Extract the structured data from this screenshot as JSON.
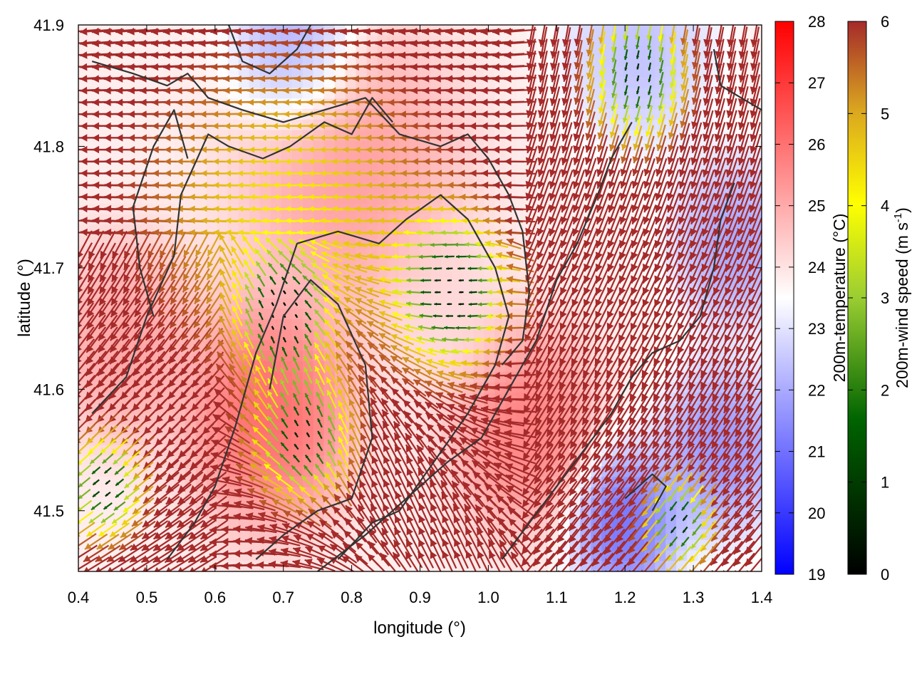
{
  "chart_data": {
    "type": "heatmap",
    "xlabel": "longitude (°)",
    "ylabel": "latitude (°)",
    "xlim": [
      0.4,
      1.4
    ],
    "ylim": [
      41.45,
      41.9
    ],
    "x_ticks": [
      "0.4",
      "0.5",
      "0.6",
      "0.7",
      "0.8",
      "0.9",
      "1.0",
      "1.1",
      "1.2",
      "1.3",
      "1.4"
    ],
    "y_ticks": [
      "41.5",
      "41.6",
      "41.7",
      "41.8",
      "41.9"
    ],
    "x_tick_values": [
      0.4,
      0.5,
      0.6,
      0.7,
      0.8,
      0.9,
      1.0,
      1.1,
      1.2,
      1.3,
      1.4
    ],
    "y_tick_values": [
      41.5,
      41.6,
      41.7,
      41.8,
      41.9
    ],
    "temperature_colorbar": {
      "label": "200m-temperature (°C)",
      "range": [
        19,
        28
      ],
      "ticks": [
        "19",
        "20",
        "21",
        "22",
        "23",
        "24",
        "25",
        "26",
        "27",
        "28"
      ],
      "colors": [
        "#0000ff",
        "#ffffff",
        "#ff0000"
      ]
    },
    "wind_colorbar": {
      "label_main": "200m-wind speed (m s",
      "label_sup": "-1",
      "label_end": ")",
      "range": [
        0,
        6
      ],
      "ticks": [
        "0",
        "1",
        "2",
        "3",
        "4",
        "5",
        "6"
      ],
      "colors": [
        "#000000",
        "#006400",
        "#9acd32",
        "#ffff00",
        "#daa520",
        "#a52a2a"
      ]
    },
    "temperature_regions": [
      {
        "lon": 0.68,
        "lat": 41.58,
        "t": 26.8,
        "spread": 0.09
      },
      {
        "lon": 0.8,
        "lat": 41.78,
        "t": 25.6,
        "spread": 0.12
      },
      {
        "lon": 0.47,
        "lat": 41.64,
        "t": 25.5,
        "spread": 0.08
      },
      {
        "lon": 1.05,
        "lat": 41.57,
        "t": 26.3,
        "spread": 0.08
      },
      {
        "lon": 0.93,
        "lat": 41.66,
        "t": 24.2,
        "spread": 0.08
      },
      {
        "lon": 0.72,
        "lat": 41.88,
        "t": 21.3,
        "spread": 0.07
      },
      {
        "lon": 1.22,
        "lat": 41.88,
        "t": 22.0,
        "spread": 0.08
      },
      {
        "lon": 1.36,
        "lat": 41.72,
        "t": 21.4,
        "spread": 0.07
      },
      {
        "lon": 1.2,
        "lat": 41.49,
        "t": 20.2,
        "spread": 0.06
      },
      {
        "lon": 1.34,
        "lat": 41.55,
        "t": 21.0,
        "spread": 0.07
      }
    ],
    "wind_slow_zones": [
      {
        "lon": 0.95,
        "lat": 41.68,
        "r": 0.06
      },
      {
        "lon": 0.73,
        "lat": 41.56,
        "r": 0.05
      },
      {
        "lon": 0.7,
        "lat": 41.66,
        "r": 0.045
      },
      {
        "lon": 1.28,
        "lat": 41.49,
        "r": 0.035
      },
      {
        "lon": 0.44,
        "lat": 41.52,
        "r": 0.04
      },
      {
        "lon": 1.22,
        "lat": 41.86,
        "r": 0.05
      }
    ],
    "contours": [
      [
        [
          0.42,
          41.87
        ],
        [
          0.48,
          41.86
        ],
        [
          0.53,
          41.85
        ],
        [
          0.56,
          41.86
        ],
        [
          0.59,
          41.84
        ],
        [
          0.64,
          41.83
        ],
        [
          0.7,
          41.82
        ],
        [
          0.76,
          41.83
        ],
        [
          0.82,
          41.84
        ],
        [
          0.87,
          41.81
        ],
        [
          0.93,
          41.8
        ],
        [
          0.97,
          41.81
        ],
        [
          1.0,
          41.79
        ],
        [
          1.03,
          41.76
        ],
        [
          1.05,
          41.73
        ],
        [
          1.06,
          41.68
        ],
        [
          1.05,
          41.64
        ],
        [
          1.02,
          41.62
        ]
      ],
      [
        [
          0.42,
          41.58
        ],
        [
          0.47,
          41.61
        ],
        [
          0.5,
          41.66
        ],
        [
          0.54,
          41.71
        ],
        [
          0.55,
          41.76
        ],
        [
          0.59,
          41.81
        ],
        [
          0.62,
          41.8
        ],
        [
          0.67,
          41.79
        ],
        [
          0.71,
          41.8
        ],
        [
          0.76,
          41.82
        ],
        [
          0.8,
          41.81
        ],
        [
          0.83,
          41.84
        ],
        [
          0.86,
          41.82
        ]
      ],
      [
        [
          0.53,
          41.46
        ],
        [
          0.57,
          41.49
        ],
        [
          0.6,
          41.52
        ],
        [
          0.63,
          41.57
        ],
        [
          0.66,
          41.63
        ],
        [
          0.69,
          41.67
        ],
        [
          0.72,
          41.72
        ],
        [
          0.78,
          41.73
        ],
        [
          0.84,
          41.72
        ],
        [
          0.88,
          41.74
        ],
        [
          0.93,
          41.76
        ],
        [
          0.97,
          41.74
        ],
        [
          1.01,
          41.7
        ],
        [
          1.03,
          41.66
        ],
        [
          1.01,
          41.62
        ],
        [
          0.97,
          41.58
        ],
        [
          0.92,
          41.54
        ],
        [
          0.87,
          41.5
        ],
        [
          0.83,
          41.49
        ],
        [
          0.78,
          41.46
        ]
      ],
      [
        [
          0.66,
          41.46
        ],
        [
          0.7,
          41.48
        ],
        [
          0.75,
          41.5
        ],
        [
          0.8,
          41.51
        ],
        [
          0.83,
          41.56
        ],
        [
          0.82,
          41.62
        ],
        [
          0.78,
          41.67
        ],
        [
          0.74,
          41.69
        ],
        [
          0.7,
          41.66
        ],
        [
          0.68,
          41.6
        ]
      ],
      [
        [
          0.75,
          41.45
        ],
        [
          0.82,
          41.48
        ],
        [
          0.88,
          41.51
        ],
        [
          0.94,
          41.54
        ],
        [
          0.99,
          41.56
        ],
        [
          1.03,
          41.6
        ],
        [
          1.07,
          41.64
        ],
        [
          1.1,
          41.69
        ],
        [
          1.13,
          41.72
        ],
        [
          1.16,
          41.76
        ],
        [
          1.18,
          41.79
        ],
        [
          1.21,
          41.82
        ]
      ],
      [
        [
          1.02,
          41.46
        ],
        [
          1.06,
          41.49
        ],
        [
          1.1,
          41.52
        ],
        [
          1.14,
          41.55
        ],
        [
          1.18,
          41.58
        ],
        [
          1.21,
          41.61
        ],
        [
          1.24,
          41.63
        ],
        [
          1.28,
          41.64
        ],
        [
          1.31,
          41.66
        ],
        [
          1.33,
          41.7
        ],
        [
          1.34,
          41.74
        ],
        [
          1.36,
          41.77
        ]
      ],
      [
        [
          0.62,
          41.9
        ],
        [
          0.64,
          41.87
        ],
        [
          0.68,
          41.86
        ],
        [
          0.72,
          41.88
        ],
        [
          0.74,
          41.9
        ]
      ],
      [
        [
          1.33,
          41.88
        ],
        [
          1.34,
          41.85
        ],
        [
          1.37,
          41.84
        ],
        [
          1.4,
          41.83
        ]
      ],
      [
        [
          1.2,
          41.51
        ],
        [
          1.24,
          41.53
        ],
        [
          1.26,
          41.52
        ],
        [
          1.24,
          41.5
        ]
      ],
      [
        [
          0.51,
          41.66
        ],
        [
          0.49,
          41.7
        ],
        [
          0.48,
          41.75
        ],
        [
          0.51,
          41.8
        ],
        [
          0.54,
          41.83
        ],
        [
          0.56,
          41.79
        ]
      ]
    ]
  }
}
